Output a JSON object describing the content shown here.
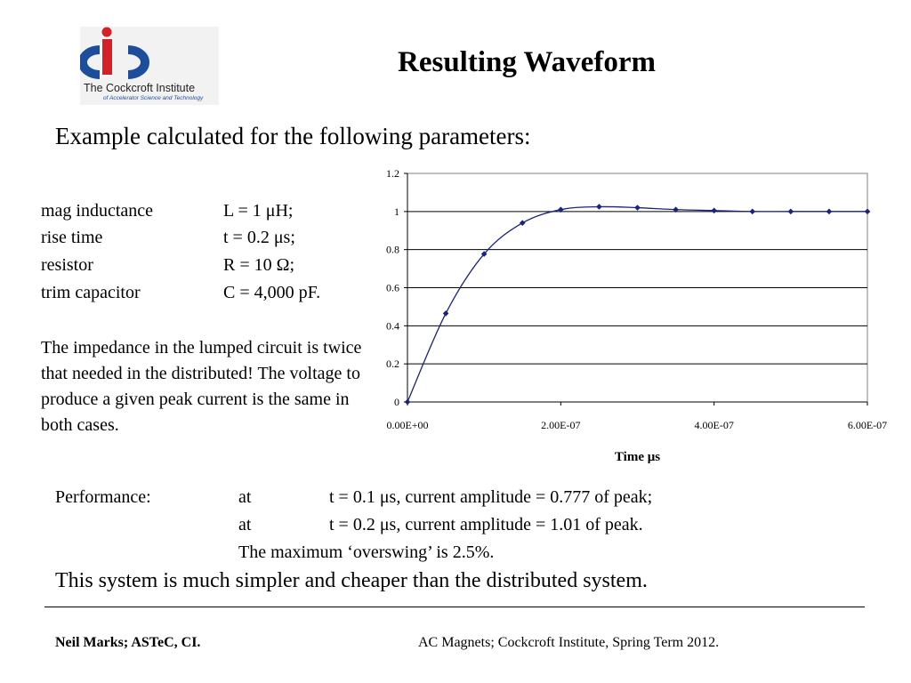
{
  "logo": {
    "name": "The Cockcroft Institute",
    "subtitle": "of Accelerator Science and Technology",
    "colors": {
      "blue": "#1d4e9c",
      "red": "#d61f26"
    }
  },
  "title": "Resulting Waveform",
  "subtitle": "Example calculated for the following parameters:",
  "parameters": [
    {
      "label": "mag inductance",
      "value": "L = 1   μH;"
    },
    {
      "label": "rise time",
      "value": "t  = 0.2 μs;"
    },
    {
      "label": "resistor",
      "value": "R = 10 Ω;"
    },
    {
      "label": "trim capacitor",
      "value": "C = 4,000 pF."
    }
  ],
  "note": "The impedance in the lumped circuit is twice that needed in the distributed! The voltage to produce a given peak current is the same in both cases.",
  "performance": {
    "label": "Performance:",
    "lines": [
      {
        "prefix": "at",
        "text": "t = 0.1 μs, current amplitude = 0.777 of peak;"
      },
      {
        "prefix": "at",
        "text": "t = 0.2 μs, current amplitude = 1.01 of peak."
      }
    ],
    "max_overswing": "The maximum ‘overswing’ is 2.5%."
  },
  "summary": "This system is much simpler and cheaper than the distributed system.",
  "footer": {
    "left": "Neil Marks; ASTeC, CI.",
    "right": "AC Magnets; Cockcroft Institute, Spring Term 2012."
  },
  "chart_data": {
    "type": "line",
    "title": "",
    "xlabel": "Time μs",
    "ylabel": "",
    "xlim": [
      0,
      6e-07
    ],
    "ylim": [
      0,
      1.2
    ],
    "x_ticks": [
      "0.00E+00",
      "2.00E-07",
      "4.00E-07",
      "6.00E-07"
    ],
    "y_ticks": [
      "0",
      "0.2",
      "0.4",
      "0.6",
      "0.8",
      "1",
      "1.2"
    ],
    "grid": "horizontal",
    "legend": "none",
    "line_color": "#1a237e",
    "series": [
      {
        "x": [
          0,
          5e-08,
          1e-07,
          1.5e-07,
          2e-07,
          2.5e-07,
          3e-07,
          3.5e-07,
          4e-07,
          4.5e-07,
          5e-07,
          5.5e-07,
          6e-07
        ],
        "y": [
          0,
          0.465,
          0.777,
          0.94,
          1.01,
          1.025,
          1.02,
          1.01,
          1.005,
          1.0,
          1.0,
          1.0,
          1.0
        ]
      }
    ]
  }
}
